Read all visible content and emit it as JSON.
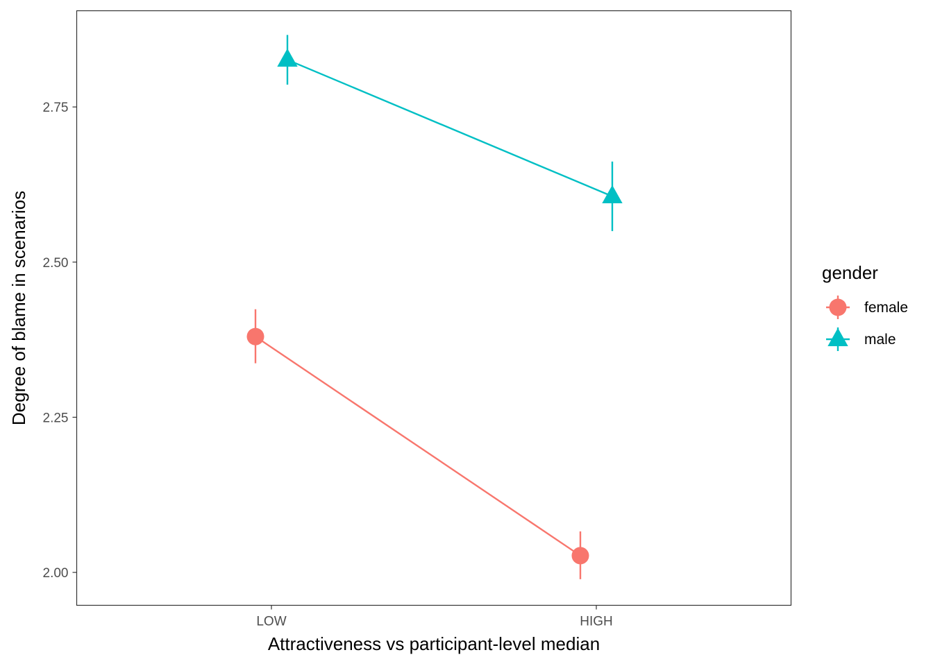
{
  "chart_data": {
    "type": "line",
    "xlabel": "Attractiveness vs participant-level median",
    "ylabel": "Degree of blame in scenarios",
    "categories": [
      "LOW",
      "HIGH"
    ],
    "ylim": [
      1.947,
      2.905
    ],
    "yticks": [
      2.0,
      2.25,
      2.5,
      2.75
    ],
    "ytick_labels": [
      "2.00",
      "2.25",
      "2.50",
      "2.75"
    ],
    "grid": false,
    "legend": {
      "title": "gender",
      "position": "right"
    },
    "series": [
      {
        "name": "female",
        "color": "#F8766D",
        "marker": "circle",
        "values": [
          2.38,
          2.027
        ],
        "error_low": [
          2.337,
          1.989
        ],
        "error_high": [
          2.424,
          2.066
        ]
      },
      {
        "name": "male",
        "color": "#00BFC4",
        "marker": "triangle",
        "values": [
          2.826,
          2.606
        ],
        "error_low": [
          2.786,
          2.55
        ],
        "error_high": [
          2.866,
          2.662
        ]
      }
    ]
  }
}
